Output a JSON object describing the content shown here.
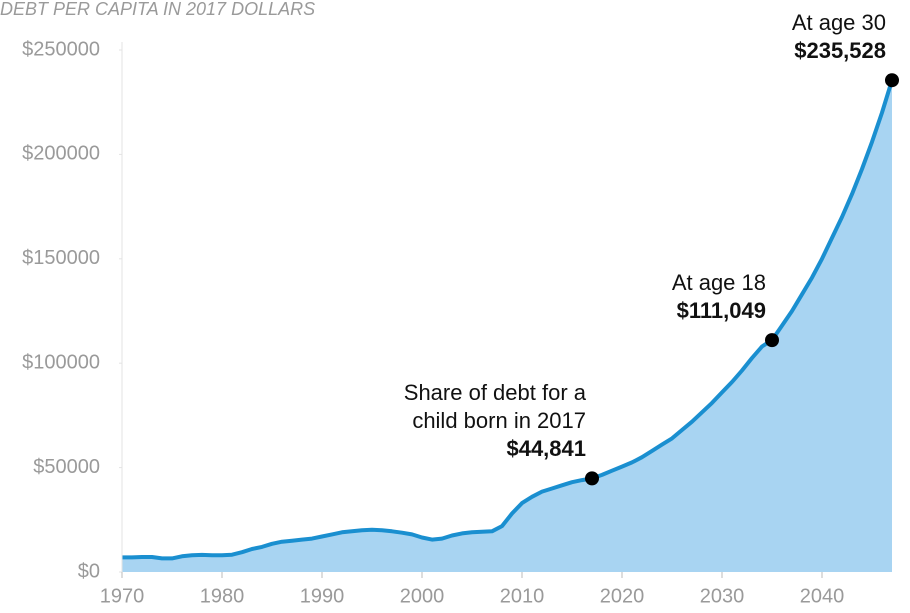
{
  "chart_data": {
    "type": "area",
    "title": "DEBT PER CAPITA IN 2017 DOLLARS",
    "x": [
      1970,
      1971,
      1972,
      1973,
      1974,
      1975,
      1976,
      1977,
      1978,
      1979,
      1980,
      1981,
      1982,
      1983,
      1984,
      1985,
      1986,
      1987,
      1988,
      1989,
      1990,
      1991,
      1992,
      1993,
      1994,
      1995,
      1996,
      1997,
      1998,
      1999,
      2000,
      2001,
      2002,
      2003,
      2004,
      2005,
      2006,
      2007,
      2008,
      2009,
      2010,
      2011,
      2012,
      2013,
      2014,
      2015,
      2016,
      2017,
      2018,
      2019,
      2020,
      2021,
      2022,
      2023,
      2024,
      2025,
      2026,
      2027,
      2028,
      2029,
      2030,
      2031,
      2032,
      2033,
      2034,
      2035,
      2036,
      2037,
      2038,
      2039,
      2040,
      2041,
      2042,
      2043,
      2044,
      2045,
      2046,
      2047
    ],
    "series": [
      {
        "color": "#1a8fd0",
        "fill": "#a8d4f2",
        "values": [
          7000,
          7000,
          7200,
          7200,
          6500,
          6500,
          7500,
          8000,
          8200,
          8000,
          8000,
          8300,
          9500,
          11000,
          12000,
          13500,
          14500,
          15000,
          15500,
          16000,
          17000,
          18000,
          19000,
          19500,
          20000,
          20200,
          20000,
          19500,
          18800,
          18000,
          16500,
          15500,
          16000,
          17500,
          18500,
          19000,
          19300,
          19500,
          22000,
          28000,
          33000,
          36000,
          38500,
          40000,
          41500,
          43000,
          44000,
          44841,
          46500,
          48500,
          50500,
          52500,
          55000,
          58000,
          61000,
          64000,
          68000,
          72000,
          76500,
          81000,
          86000,
          91000,
          96500,
          102500,
          108000,
          111049,
          118000,
          125000,
          133000,
          141000,
          150000,
          160000,
          170000,
          181000,
          193000,
          206000,
          220000,
          235528
        ]
      }
    ],
    "xlim": [
      1970,
      2047
    ],
    "xticks": [
      1970,
      1980,
      1990,
      2000,
      2010,
      2020,
      2030,
      2040
    ],
    "ylim": [
      0,
      250000
    ],
    "yticks": [
      {
        "value": 0,
        "label": "$0"
      },
      {
        "value": 50000,
        "label": "$50000"
      },
      {
        "value": 100000,
        "label": "$100000"
      },
      {
        "value": 150000,
        "label": "$150000"
      },
      {
        "value": 200000,
        "label": "$200000"
      },
      {
        "value": 250000,
        "label": "$250000"
      }
    ],
    "annotations": [
      {
        "x": 2017,
        "y": 44841,
        "lines": [
          "Share of debt for a",
          "child born in 2017"
        ],
        "label": "$44,841"
      },
      {
        "x": 2035,
        "y": 111049,
        "lines": [
          "At age 18"
        ],
        "label": "$111,049"
      },
      {
        "x": 2047,
        "y": 235528,
        "lines": [
          "At age 30"
        ],
        "label": "$235,528"
      }
    ]
  }
}
